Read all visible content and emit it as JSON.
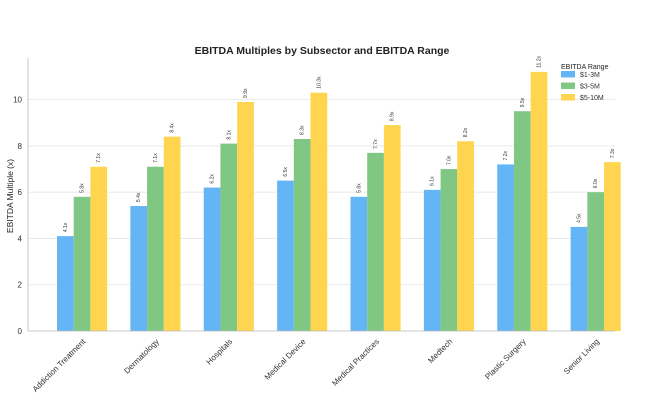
{
  "chart_data": {
    "type": "bar",
    "title": "EBITDA Multiples by Subsector and EBITDA Range",
    "xlabel": "",
    "ylabel": "EBITDA Multiple (x)",
    "ylim": [
      0,
      11.8
    ],
    "yticks": [
      0,
      2,
      4,
      6,
      8,
      10
    ],
    "grid": true,
    "legend_title": "EBITDA Range",
    "legend_position": "top-right",
    "categories": [
      "Addiction Treatment",
      "Dermatology",
      "Hospitals",
      "Medical Device",
      "Medical Practices",
      "Medtech",
      "Plastic Surgery",
      "Senior Living"
    ],
    "series": [
      {
        "name": "$1-3M",
        "color": "#64b5f6",
        "values": [
          4.1,
          5.4,
          6.2,
          6.5,
          5.8,
          6.1,
          7.2,
          4.5
        ],
        "labels": [
          "4.1x",
          "5.4x",
          "6.2x",
          "6.5x",
          "5.8x",
          "6.1x",
          "7.2x",
          "4.5x"
        ]
      },
      {
        "name": "$3-5M",
        "color": "#81c784",
        "values": [
          5.8,
          7.1,
          8.1,
          8.3,
          7.7,
          7.0,
          9.5,
          6.0
        ],
        "labels": [
          "5.8x",
          "7.1x",
          "8.1x",
          "8.3x",
          "7.7x",
          "7.0x",
          "9.5x",
          "6.0x"
        ]
      },
      {
        "name": "$5-10M",
        "color": "#ffd54f",
        "values": [
          7.1,
          8.4,
          9.9,
          10.3,
          8.9,
          8.2,
          11.2,
          7.3
        ],
        "labels": [
          "7.1x",
          "8.4x",
          "9.9x",
          "10.3x",
          "8.9x",
          "8.2x",
          "11.2x",
          "7.3x"
        ]
      }
    ]
  }
}
